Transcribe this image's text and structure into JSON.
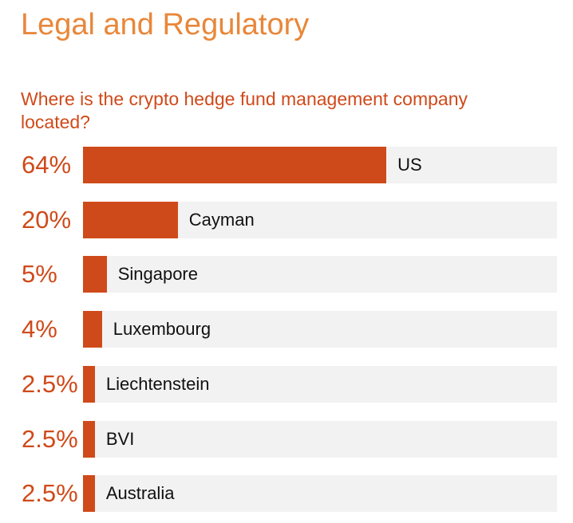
{
  "page": {
    "section_title": "Legal and Regulatory",
    "question": "Where is the crypto hedge fund management company located?"
  },
  "colors": {
    "title": "#E8873A",
    "accent": "#CF4A1A",
    "track": "#F2F2F2",
    "label": "#111111"
  },
  "chart_data": {
    "type": "bar",
    "orientation": "horizontal",
    "title": "Where is the crypto hedge fund management company located?",
    "categories": [
      "US",
      "Cayman",
      "Singapore",
      "Luxembourg",
      "Liechtenstein",
      "BVI",
      "Australia"
    ],
    "values": [
      64,
      20,
      5,
      4,
      2.5,
      2.5,
      2.5
    ],
    "value_labels": [
      "64%",
      "20%",
      "5%",
      "4%",
      "2.5%",
      "2.5%",
      "2.5%"
    ],
    "unit": "%",
    "xlim": [
      0,
      100
    ],
    "grid": false,
    "legend": "none"
  }
}
